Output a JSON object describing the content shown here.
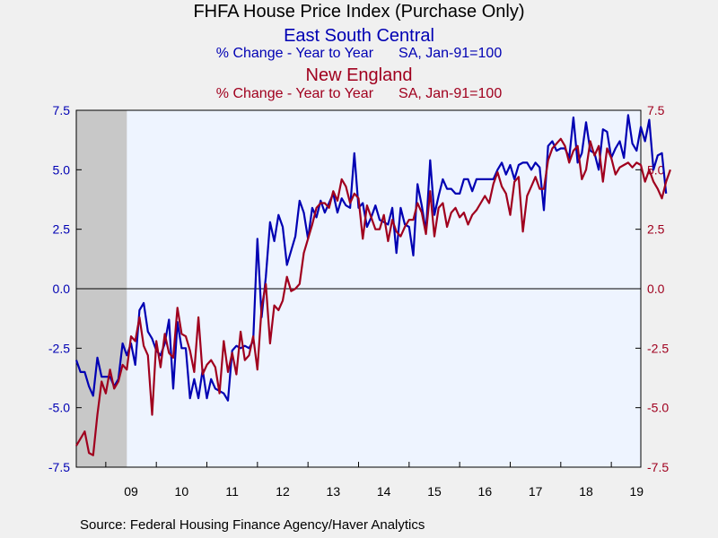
{
  "title": "FHFA House Price Index (Purchase Only)",
  "series1": {
    "name": "East South Central",
    "sub_left": "% Change - Year to Year",
    "sub_right": "SA, Jan-91=100",
    "color": "#0000b3"
  },
  "series2": {
    "name": "New England",
    "sub_left": "% Change - Year to Year",
    "sub_right": "SA, Jan-91=100",
    "color": "#a0001e"
  },
  "source": "Source:  Federal Housing Finance Agency/Haver Analytics",
  "chart_data": {
    "type": "line",
    "x_start": "2008-06",
    "x_end": "2019-08",
    "x_ticks": [
      "09",
      "10",
      "11",
      "12",
      "13",
      "14",
      "15",
      "16",
      "17",
      "18",
      "19"
    ],
    "y_ticks": [
      "7.5",
      "5.0",
      "2.5",
      "0.0",
      "-2.5",
      "-5.0",
      "-7.5"
    ],
    "ylim": [
      -7.5,
      7.5
    ],
    "recession": {
      "start": "2008-06",
      "end": "2009-06",
      "color": "#c8c8c8"
    },
    "plot_bg": "#eef4ff",
    "series": [
      {
        "name": "East South Central",
        "color": "#0000b3",
        "start": "2008-06",
        "values": [
          -3.0,
          -3.5,
          -3.5,
          -4.1,
          -4.5,
          -2.9,
          -3.7,
          -3.7,
          -3.7,
          -4.1,
          -3.8,
          -2.3,
          -2.8,
          -2.3,
          -3.2,
          -0.9,
          -0.6,
          -1.8,
          -2.1,
          -2.6,
          -2.8,
          -2.3,
          -1.3,
          -4.2,
          -1.4,
          -2.5,
          -2.5,
          -4.6,
          -3.8,
          -4.6,
          -3.4,
          -4.6,
          -3.8,
          -4.2,
          -4.3,
          -4.4,
          -4.7,
          -2.6,
          -2.4,
          -2.5,
          -2.4,
          -2.5,
          -2.2,
          2.1,
          -1.2,
          0.5,
          2.8,
          2.0,
          3.1,
          2.6,
          1.0,
          1.6,
          2.2,
          3.7,
          3.2,
          2.1,
          3.4,
          3.0,
          3.7,
          3.2,
          3.6,
          4.0,
          3.2,
          3.8,
          3.5,
          3.4,
          5.7,
          3.4,
          3.6,
          2.6,
          3.0,
          3.5,
          2.9,
          2.8,
          2.7,
          3.4,
          1.5,
          3.4,
          2.7,
          2.6,
          1.4,
          4.4,
          3.5,
          2.4,
          5.4,
          3.1,
          3.9,
          4.6,
          4.2,
          4.2,
          4.0,
          4.0,
          4.6,
          4.6,
          4.1,
          4.6,
          4.6,
          4.6,
          4.6,
          4.6,
          5.0,
          5.3,
          4.8,
          5.2,
          4.6,
          5.2,
          5.3,
          5.3,
          5.0,
          5.3,
          5.1,
          3.3,
          6.0,
          6.2,
          5.8,
          5.9,
          5.9,
          5.5,
          7.2,
          5.3,
          5.7,
          7.0,
          5.8,
          5.7,
          5.0,
          6.7,
          6.6,
          5.5,
          5.9,
          6.2,
          5.5,
          7.3,
          6.1,
          5.8,
          6.8,
          6.2,
          7.1,
          5.0,
          5.6,
          5.7,
          4.0
        ]
      },
      {
        "name": "New England",
        "color": "#a0001e",
        "start": "2008-06",
        "values": [
          -6.6,
          -6.3,
          -6.0,
          -6.9,
          -7.0,
          -5.3,
          -3.9,
          -4.4,
          -3.4,
          -4.2,
          -3.9,
          -3.2,
          -3.4,
          -2.0,
          -2.2,
          -1.2,
          -2.4,
          -2.8,
          -5.3,
          -2.2,
          -3.3,
          -1.9,
          -2.7,
          -2.9,
          -0.8,
          -1.9,
          -2.0,
          -2.6,
          -3.5,
          -1.2,
          -3.6,
          -3.2,
          -3.0,
          -3.3,
          -4.4,
          -2.2,
          -3.5,
          -2.7,
          -3.6,
          -1.8,
          -3.0,
          -2.8,
          -2.0,
          -3.4,
          -0.8,
          0.2,
          -2.3,
          -0.7,
          -0.9,
          -0.5,
          0.5,
          -0.1,
          0.0,
          0.2,
          1.5,
          2.1,
          2.7,
          3.4,
          3.6,
          3.6,
          3.4,
          4.1,
          3.7,
          4.6,
          4.3,
          3.6,
          4.0,
          3.8,
          2.1,
          3.5,
          3.0,
          2.5,
          2.5,
          3.1,
          2.0,
          2.9,
          2.4,
          2.2,
          2.6,
          2.9,
          2.9,
          3.6,
          3.2,
          2.3,
          4.1,
          2.2,
          3.4,
          3.6,
          2.6,
          3.2,
          3.4,
          3.0,
          3.2,
          2.7,
          3.1,
          3.3,
          3.6,
          3.9,
          3.6,
          4.4,
          4.9,
          4.3,
          4.0,
          3.1,
          4.5,
          4.7,
          2.4,
          3.9,
          4.3,
          4.7,
          4.2,
          4.2,
          5.4,
          5.9,
          6.1,
          6.3,
          6.0,
          5.3,
          5.8,
          6.0,
          4.6,
          5.0,
          6.2,
          5.6,
          6.0,
          4.5,
          5.9,
          5.5,
          4.8,
          5.1,
          5.2,
          5.3,
          5.1,
          5.3,
          5.2,
          4.5,
          5.0,
          4.5,
          4.2,
          3.8,
          4.5,
          5.0
        ]
      }
    ]
  }
}
